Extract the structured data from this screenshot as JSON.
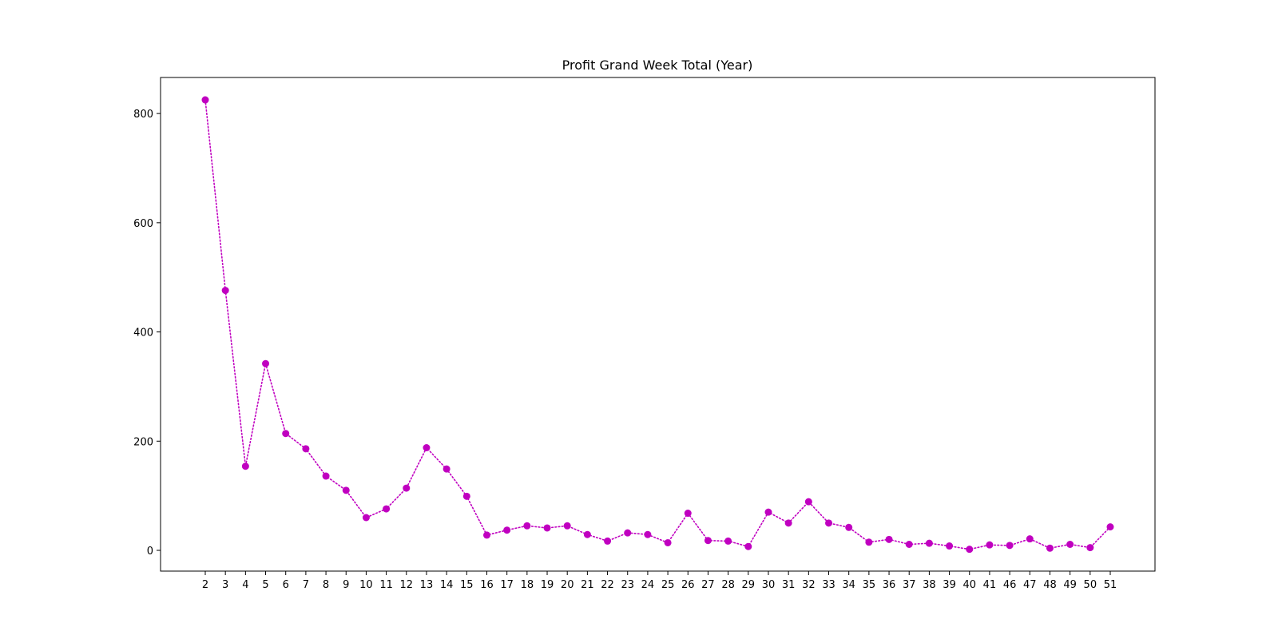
{
  "chart_data": {
    "type": "line",
    "title": "Profit Grand Week Total (Year)",
    "xlabel": "",
    "ylabel": "",
    "ylim": [
      -38,
      866
    ],
    "y_ticks": [
      0,
      200,
      400,
      600,
      800
    ],
    "grid": false,
    "legend": "none",
    "categories": [
      "2",
      "3",
      "4",
      "5",
      "6",
      "7",
      "8",
      "9",
      "10",
      "11",
      "12",
      "13",
      "14",
      "15",
      "16",
      "17",
      "18",
      "19",
      "20",
      "21",
      "22",
      "23",
      "24",
      "25",
      "26",
      "27",
      "28",
      "29",
      "30",
      "31",
      "32",
      "33",
      "34",
      "35",
      "36",
      "37",
      "38",
      "39",
      "40",
      "41",
      "46",
      "47",
      "48",
      "49",
      "50",
      "51"
    ],
    "series": [
      {
        "color": "#c000c0",
        "line_style": "dotted",
        "marker": "circle",
        "values": [
          825,
          476,
          154,
          342,
          214,
          186,
          136,
          110,
          60,
          76,
          114,
          188,
          149,
          99,
          28,
          37,
          45,
          41,
          45,
          29,
          17,
          32,
          29,
          14,
          68,
          18,
          17,
          7,
          70,
          50,
          89,
          50,
          42,
          15,
          20,
          11,
          13,
          8,
          2,
          10,
          9,
          21,
          4,
          11,
          5,
          43
        ]
      }
    ]
  }
}
